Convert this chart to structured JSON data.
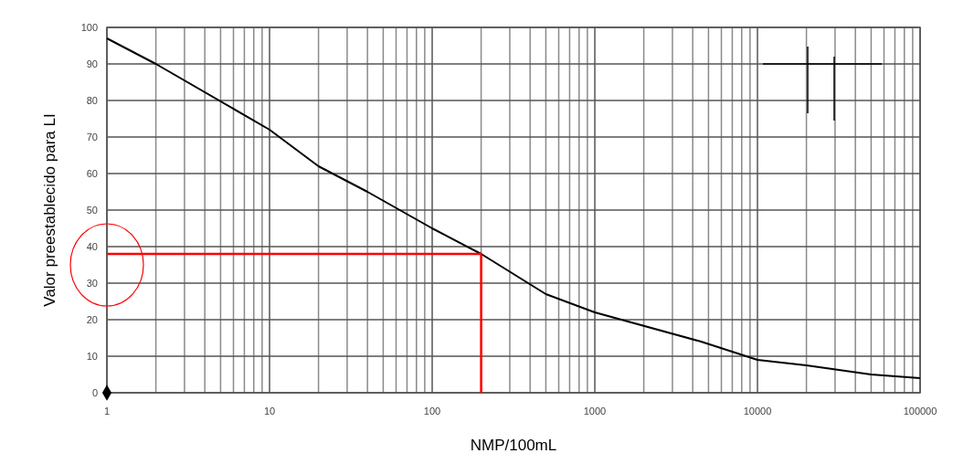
{
  "chart_data": {
    "type": "line",
    "xlabel": "NMP/100mL",
    "ylabel": "Valor preestablecido para LI",
    "log": "x",
    "grid": true,
    "xlim": [
      1,
      100000
    ],
    "ylim": [
      0,
      100
    ],
    "xticks": [
      1,
      {
        "value": 2,
        "label": null
      },
      {
        "value": 3,
        "label": null
      },
      {
        "value": 4,
        "label": null
      },
      {
        "value": 5,
        "label": null
      },
      {
        "value": 6,
        "label": null
      },
      {
        "value": 7,
        "label": null
      },
      {
        "value": 8,
        "label": null
      },
      {
        "value": 9,
        "label": null
      },
      10,
      {
        "value": 20,
        "label": null
      },
      {
        "value": 30,
        "label": null
      },
      {
        "value": 40,
        "label": null
      },
      {
        "value": 50,
        "label": null
      },
      {
        "value": 60,
        "label": null
      },
      {
        "value": 70,
        "label": null
      },
      {
        "value": 80,
        "label": null
      },
      {
        "value": 90,
        "label": null
      },
      100,
      {
        "value": 200,
        "label": null
      },
      {
        "value": 300,
        "label": null
      },
      {
        "value": 400,
        "label": null
      },
      {
        "value": 500,
        "label": null
      },
      {
        "value": 600,
        "label": null
      },
      {
        "value": 700,
        "label": null
      },
      {
        "value": 800,
        "label": null
      },
      {
        "value": 900,
        "label": null
      },
      1000,
      {
        "value": 2000,
        "label": null
      },
      {
        "value": 3000,
        "label": null
      },
      {
        "value": 4000,
        "label": null
      },
      {
        "value": 5000,
        "label": null
      },
      {
        "value": 6000,
        "label": null
      },
      {
        "value": 7000,
        "label": null
      },
      {
        "value": 8000,
        "label": null
      },
      {
        "value": 9000,
        "label": null
      },
      10000,
      {
        "value": 20000,
        "label": null
      },
      {
        "value": 30000,
        "label": null
      },
      {
        "value": 40000,
        "label": null
      },
      {
        "value": 50000,
        "label": null
      },
      {
        "value": 60000,
        "label": null
      },
      {
        "value": 70000,
        "label": null
      },
      {
        "value": 80000,
        "label": null
      },
      {
        "value": 90000,
        "label": null
      },
      100000
    ],
    "yticks": [
      0,
      10,
      20,
      30,
      40,
      50,
      60,
      70,
      80,
      90,
      100
    ],
    "series": [
      {
        "color": "#000000",
        "x": [
          1,
          2,
          10,
          20,
          40,
          100,
          200,
          500,
          1000,
          4500,
          10000,
          20000,
          50000,
          100000
        ],
        "values": [
          97,
          90,
          72,
          62,
          55,
          45,
          38,
          27,
          22,
          14,
          9,
          7.5,
          5,
          4
        ]
      },
      {
        "color": "#ff0000",
        "x": [
          1,
          200,
          200
        ],
        "values": [
          38,
          38,
          0
        ]
      },
      {
        "type": "scatter",
        "color": "#000000",
        "marker": "diamond",
        "x": [
          1
        ],
        "values": [
          0
        ]
      }
    ]
  }
}
